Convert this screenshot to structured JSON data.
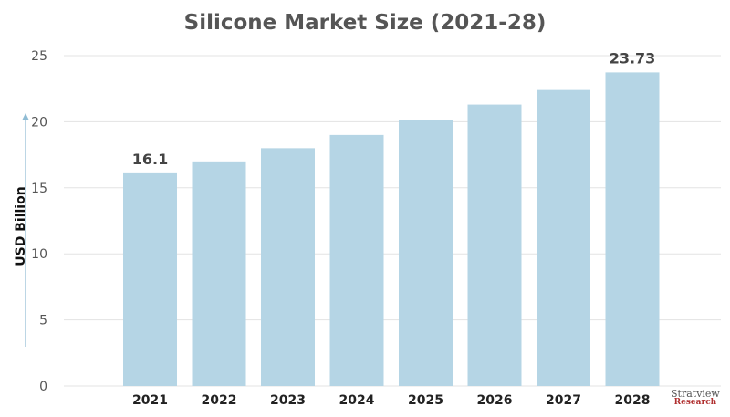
{
  "chart_data": {
    "type": "bar",
    "title": "Silicone Market Size (2021-28)",
    "ylabel": "USD Billion",
    "xlabel": "",
    "categories": [
      "2021",
      "2022",
      "2023",
      "2024",
      "2025",
      "2026",
      "2027",
      "2028"
    ],
    "values": [
      16.1,
      17.0,
      18.0,
      19.0,
      20.1,
      21.3,
      22.4,
      23.73
    ],
    "data_labels": {
      "2021": "16.1",
      "2028": "23.73"
    },
    "ylim": [
      0,
      25
    ],
    "yticks": [
      0,
      5,
      10,
      15,
      20,
      25
    ],
    "grid": true,
    "bar_color": "#b5d5e5",
    "axis_arrow_color": "#8fbcd4"
  },
  "logo": {
    "line1": "Stratview",
    "line2": "Research"
  }
}
